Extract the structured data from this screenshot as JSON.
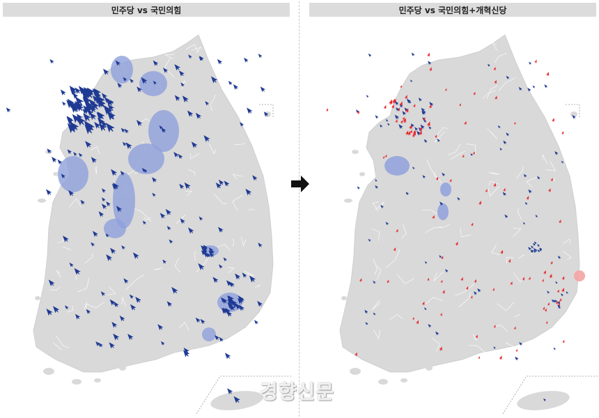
{
  "panels": {
    "left": {
      "title": "민주당 vs 국민의힘"
    },
    "right": {
      "title": "민주당 vs 국민의힘+개혁신당"
    }
  },
  "watermark": "경향신문",
  "colors": {
    "land": "#d9d9d9",
    "border": "#ffffff",
    "democratic_arrow": "#1f3a93",
    "democratic_area": "#8fa0dc",
    "ppp_arrow": "#e8292e",
    "ppp_area": "#f3a3a3"
  },
  "icons": {
    "transition": "right-arrow-icon",
    "district": "arrow-icon"
  }
}
